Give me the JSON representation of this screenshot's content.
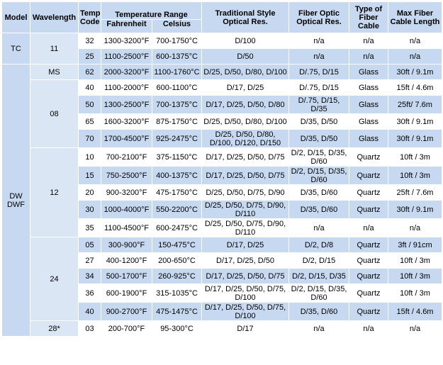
{
  "header": {
    "model": "Model",
    "wavelength": "Wavelength",
    "temp_code": "Temp Code",
    "temperature_range": "Temperature Range",
    "fahrenheit": "Fahrenheit",
    "celsius": "Celsius",
    "traditional": "Traditional Style Optical Res.",
    "fiber_optic": "Fiber Optic Optical Res.",
    "fiber_type": "Type of Fiber Cable",
    "max_length": "Max Fiber Cable Length"
  },
  "groups": [
    {
      "model": "TC",
      "wavelengths": [
        {
          "name": "11",
          "rows": [
            [
              "32",
              "1300-3200°F",
              "700-1750°C",
              "D/100",
              "n/a",
              "n/a",
              "n/a"
            ],
            [
              "25",
              "1100-2500°F",
              "600-1375°C",
              "D/50",
              "n/a",
              "n/a",
              "n/a"
            ]
          ]
        }
      ]
    },
    {
      "model": "DW DWF",
      "wavelengths": [
        {
          "name": "MS",
          "rows": [
            [
              "62",
              "2000-3200°F",
              "1100-1760°C",
              "D/25, D/50, D/80, D/100",
              "D/.75, D/15",
              "Glass",
              "30ft / 9.1m"
            ]
          ]
        },
        {
          "name": "08",
          "rows": [
            [
              "40",
              "1100-2000°F",
              "600-1100°C",
              "D/17, D/25",
              "D/.75, D/15",
              "Glass",
              "15ft / 4.6m"
            ],
            [
              "50",
              "1300-2500°F",
              "700-1375°C",
              "D/17, D/25, D/50, D/80",
              "D/.75, D/15, D/35",
              "Glass",
              "25ft/ 7.6m"
            ],
            [
              "65",
              "1600-3200°F",
              "875-1750°C",
              "D/25, D/50, D/80, D/100",
              "D/35, D/50",
              "Glass",
              "30ft / 9.1m"
            ],
            [
              "70",
              "1700-4500°F",
              "925-2475°C",
              "D/25, D/50, D/80, D/100, D/120, D/150",
              "D/35, D/50",
              "Glass",
              "30ft / 9.1m"
            ]
          ]
        },
        {
          "name": "12",
          "rows": [
            [
              "10",
              "700-2100°F",
              "375-1150°C",
              "D/17, D/25, D/50, D/75",
              "D/2, D/15, D/35, D/60",
              "Quartz",
              "10ft / 3m"
            ],
            [
              "15",
              "750-2500°F",
              "400-1375°C",
              "D/17, D/25, D/50, D/75",
              "D/2, D/15, D/35, D/60",
              "Quartz",
              "10ft / 3m"
            ],
            [
              "20",
              "900-3200°F",
              "475-1750°C",
              "D/25, D/50, D/75, D/90",
              "D/35, D/60",
              "Quartz",
              "25ft / 7.6m"
            ],
            [
              "30",
              "1000-4000°F",
              "550-2200°C",
              "D/25, D/50, D/75, D/90, D/110",
              "D/35, D/60",
              "Quartz",
              "30ft / 9.1m"
            ],
            [
              "35",
              "1100-4500°F",
              "600-2475°C",
              "D/25, D/50, D/75, D/90, D/110",
              "n/a",
              "n/a",
              "n/a"
            ]
          ]
        },
        {
          "name": "24",
          "rows": [
            [
              "05",
              "300-900°F",
              "150-475°C",
              "D/17, D/25",
              "D/2, D/8",
              "Quartz",
              "3ft / 91cm"
            ],
            [
              "27",
              "400-1200°F",
              "200-650°C",
              "D/17, D/25, D/50",
              "D/2, D/15",
              "Quartz",
              "10ft / 3m"
            ],
            [
              "34",
              "500-1700°F",
              "260-925°C",
              "D/17, D/25, D/50, D/75",
              "D/2, D/15, D/35",
              "Quartz",
              "10ft / 3m"
            ],
            [
              "36",
              "600-1900°F",
              "315-1035°C",
              "D/17, D/25, D/50, D/75, D/100",
              "D/2, D/15, D/35, D/60",
              "Quartz",
              "10ft / 3m"
            ],
            [
              "40",
              "900-2700°F",
              "475-1475°C",
              "D/17, D/25, D/50, D/75, D/100",
              "D/35, D/60",
              "Quartz",
              "15ft / 4.6m"
            ]
          ]
        },
        {
          "name": "28*",
          "rows": [
            [
              "03",
              "200-700°F",
              "95-300°C",
              "D/17",
              "n/a",
              "n/a",
              "n/a"
            ]
          ]
        }
      ]
    }
  ]
}
